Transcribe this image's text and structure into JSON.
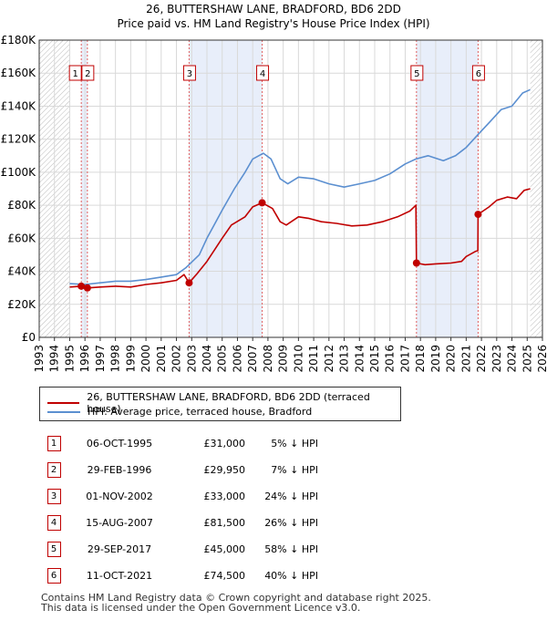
{
  "title_line1": "26, BUTTERSHAW LANE, BRADFORD, BD6 2DD",
  "title_line2": "Price paid vs. HM Land Registry's House Price Index (HPI)",
  "colors": {
    "price": "#c00000",
    "hpi": "#5b8fd0",
    "shade": "#e8eefa"
  },
  "chart_data": {
    "type": "line",
    "title": "26, BUTTERSHAW LANE, BRADFORD, BD6 2DD — Price paid vs. HM Land Registry's House Price Index (HPI)",
    "xlabel": "",
    "ylabel": "",
    "xlim": [
      1993,
      2026
    ],
    "ylim": [
      0,
      180000
    ],
    "y_ticks": [
      0,
      20000,
      40000,
      60000,
      80000,
      100000,
      120000,
      140000,
      160000,
      180000
    ],
    "y_tick_labels": [
      "£0",
      "£20K",
      "£40K",
      "£60K",
      "£80K",
      "£100K",
      "£120K",
      "£140K",
      "£160K",
      "£180K"
    ],
    "x_ticks": [
      1993,
      1994,
      1995,
      1996,
      1997,
      1998,
      1999,
      2000,
      2001,
      2002,
      2003,
      2004,
      2005,
      2006,
      2007,
      2008,
      2009,
      2010,
      2011,
      2012,
      2013,
      2014,
      2015,
      2016,
      2017,
      2018,
      2019,
      2020,
      2021,
      2022,
      2023,
      2024,
      2025,
      2026
    ],
    "grid": true,
    "shaded_spans": [
      [
        1995.76,
        1996.16
      ],
      [
        2002.83,
        2007.62
      ],
      [
        2017.74,
        2021.78
      ]
    ],
    "data_end": 2025.2,
    "series": [
      {
        "name": "26, BUTTERSHAW LANE, BRADFORD, BD6 2DD (terraced house)",
        "color": "#c00000",
        "points": [
          [
            1995.0,
            30500
          ],
          [
            1995.76,
            31000
          ],
          [
            1996.16,
            29950
          ],
          [
            1997.0,
            30500
          ],
          [
            1998.0,
            31000
          ],
          [
            1999.0,
            30500
          ],
          [
            2000.0,
            32000
          ],
          [
            2001.0,
            33000
          ],
          [
            2002.0,
            34500
          ],
          [
            2002.5,
            38000
          ],
          [
            2002.83,
            33000
          ],
          [
            2003.3,
            38000
          ],
          [
            2004.0,
            46000
          ],
          [
            2005.0,
            60000
          ],
          [
            2005.6,
            68000
          ],
          [
            2006.5,
            73000
          ],
          [
            2007.0,
            79000
          ],
          [
            2007.62,
            81500
          ],
          [
            2008.3,
            78000
          ],
          [
            2008.8,
            70000
          ],
          [
            2009.2,
            68000
          ],
          [
            2010.0,
            73000
          ],
          [
            2010.7,
            72000
          ],
          [
            2011.5,
            70000
          ],
          [
            2012.5,
            69000
          ],
          [
            2013.5,
            67500
          ],
          [
            2014.5,
            68000
          ],
          [
            2015.5,
            70000
          ],
          [
            2016.5,
            73000
          ],
          [
            2017.3,
            76500
          ],
          [
            2017.7,
            80000
          ],
          [
            2017.74,
            45000
          ],
          [
            2018.3,
            44000
          ],
          [
            2019.0,
            44500
          ],
          [
            2020.0,
            45000
          ],
          [
            2020.7,
            46000
          ],
          [
            2021.0,
            49000
          ],
          [
            2021.6,
            52000
          ],
          [
            2021.77,
            52500
          ],
          [
            2021.78,
            74500
          ],
          [
            2022.5,
            79000
          ],
          [
            2023.0,
            83000
          ],
          [
            2023.7,
            85000
          ],
          [
            2024.3,
            84000
          ],
          [
            2024.8,
            89000
          ],
          [
            2025.2,
            90000
          ]
        ]
      },
      {
        "name": "HPI: Average price, terraced house, Bradford",
        "color": "#5b8fd0",
        "points": [
          [
            1995.0,
            32500
          ],
          [
            1996.0,
            32000
          ],
          [
            1997.0,
            33000
          ],
          [
            1998.0,
            34000
          ],
          [
            1999.0,
            34000
          ],
          [
            2000.0,
            35000
          ],
          [
            2001.0,
            36500
          ],
          [
            2002.0,
            38000
          ],
          [
            2002.6,
            42000
          ],
          [
            2003.5,
            50000
          ],
          [
            2004.0,
            60000
          ],
          [
            2005.0,
            77000
          ],
          [
            2005.8,
            90000
          ],
          [
            2006.5,
            100000
          ],
          [
            2007.0,
            108000
          ],
          [
            2007.7,
            111500
          ],
          [
            2008.2,
            108000
          ],
          [
            2008.8,
            96000
          ],
          [
            2009.3,
            93000
          ],
          [
            2010.0,
            97000
          ],
          [
            2011.0,
            96000
          ],
          [
            2012.0,
            93000
          ],
          [
            2013.0,
            91000
          ],
          [
            2014.0,
            93000
          ],
          [
            2015.0,
            95000
          ],
          [
            2016.0,
            99000
          ],
          [
            2017.0,
            105000
          ],
          [
            2017.7,
            108000
          ],
          [
            2018.5,
            110000
          ],
          [
            2019.5,
            107000
          ],
          [
            2020.3,
            110000
          ],
          [
            2021.0,
            115000
          ],
          [
            2021.8,
            123000
          ],
          [
            2022.5,
            130000
          ],
          [
            2023.3,
            138000
          ],
          [
            2024.0,
            140000
          ],
          [
            2024.7,
            148000
          ],
          [
            2025.2,
            150000
          ]
        ]
      }
    ],
    "sales": [
      {
        "label": "1",
        "x": 1995.76,
        "y": 31000
      },
      {
        "label": "2",
        "x": 1996.16,
        "y": 29950
      },
      {
        "label": "3",
        "x": 2002.83,
        "y": 33000
      },
      {
        "label": "4",
        "x": 2007.62,
        "y": 81500
      },
      {
        "label": "5",
        "x": 2017.74,
        "y": 45000
      },
      {
        "label": "6",
        "x": 2021.78,
        "y": 74500
      }
    ]
  },
  "legend": {
    "price": "26, BUTTERSHAW LANE, BRADFORD, BD6 2DD (terraced house)",
    "hpi": "HPI: Average price, terraced house, Bradford"
  },
  "table": [
    {
      "num": "1",
      "date": "06-OCT-1995",
      "price": "£31,000",
      "hpi": "5% ↓ HPI"
    },
    {
      "num": "2",
      "date": "29-FEB-1996",
      "price": "£29,950",
      "hpi": "7% ↓ HPI"
    },
    {
      "num": "3",
      "date": "01-NOV-2002",
      "price": "£33,000",
      "hpi": "24% ↓ HPI"
    },
    {
      "num": "4",
      "date": "15-AUG-2007",
      "price": "£81,500",
      "hpi": "26% ↓ HPI"
    },
    {
      "num": "5",
      "date": "29-SEP-2017",
      "price": "£45,000",
      "hpi": "58% ↓ HPI"
    },
    {
      "num": "6",
      "date": "11-OCT-2021",
      "price": "£74,500",
      "hpi": "40% ↓ HPI"
    }
  ],
  "footer_line1": "Contains HM Land Registry data © Crown copyright and database right 2025.",
  "footer_line2": "This data is licensed under the Open Government Licence v3.0."
}
